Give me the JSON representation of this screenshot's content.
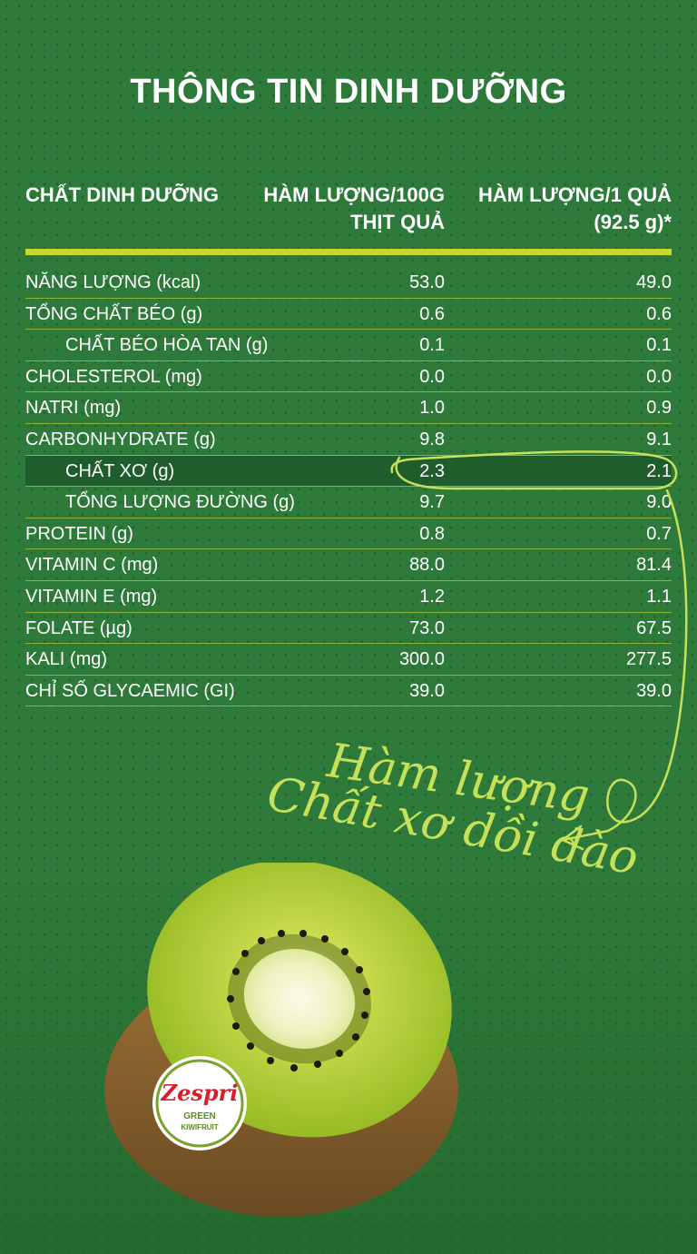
{
  "title": "THÔNG TIN  DINH DƯỠNG",
  "table": {
    "headers": {
      "col1": "CHẤT DINH DƯỠNG",
      "col2_line1": "HÀM LƯỢNG/100G",
      "col2_line2": "THỊT QUẢ",
      "col3_line1": "HÀM LƯỢNG/1 QUẢ",
      "col3_line2": "(92.5 g)*"
    },
    "rows": [
      {
        "name": "NĂNG LƯỢNG (kcal)",
        "per100": "53.0",
        "perFruit": "49.0"
      },
      {
        "name": "TỔNG CHẤT BÉO (g)",
        "per100": "0.6",
        "perFruit": "0.6"
      },
      {
        "name": "CHẤT BÉO HÒA TAN (g)",
        "per100": "0.1",
        "perFruit": "0.1"
      },
      {
        "name": "CHOLESTEROL (mg)",
        "per100": "0.0",
        "perFruit": "0.0"
      },
      {
        "name": "NATRI (mg)",
        "per100": "1.0",
        "perFruit": "0.9"
      },
      {
        "name": "CARBONHYDRATE (g)",
        "per100": "9.8",
        "perFruit": "9.1"
      },
      {
        "name": "CHẤT XƠ  (g)",
        "per100": "2.3",
        "perFruit": "2.1"
      },
      {
        "name": "TỔNG LƯỢNG ĐƯỜNG  (g)",
        "per100": "9.7",
        "perFruit": "9.0"
      },
      {
        "name": "PROTEIN (g)",
        "per100": "0.8",
        "perFruit": "0.7"
      },
      {
        "name": "VITAMIN C (mg)",
        "per100": "88.0",
        "perFruit": "81.4"
      },
      {
        "name": "VITAMIN E (mg)",
        "per100": "1.2",
        "perFruit": "1.1"
      },
      {
        "name": "FOLATE (µg)",
        "per100": "73.0",
        "perFruit": "67.5"
      },
      {
        "name": "KALI (mg)",
        "per100": "300.0",
        "perFruit": "277.5"
      },
      {
        "name": "CHỈ SỐ GLYCAEMIC  (GI)",
        "per100": "39.0",
        "perFruit": "39.0"
      }
    ]
  },
  "annotation": {
    "line1": "Hàm lượng",
    "line2": "Chất xơ dồi dào"
  },
  "logo": {
    "brand": "Zespri",
    "line1": "GREEN",
    "line2": "KIWIFRUIT"
  },
  "colors": {
    "background": "#2e7a3a",
    "accent": "#c7d92e",
    "highlight_row": "#1f5e2c",
    "logo_red": "#d81e2a"
  }
}
